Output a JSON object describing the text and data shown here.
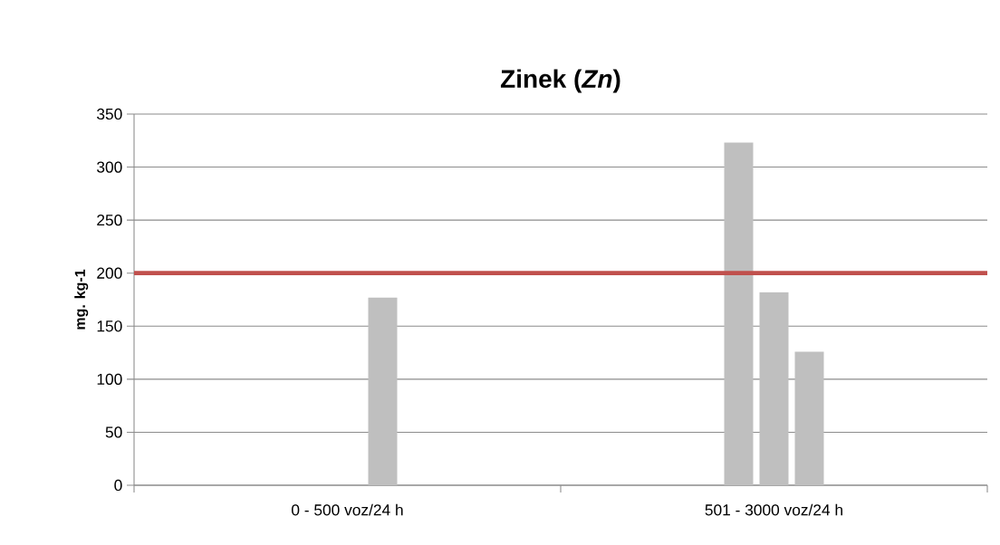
{
  "chart_data": {
    "type": "bar",
    "title": "Zinek (*Zn*)",
    "ylabel": "mg. kg-1",
    "categories": [
      "0 - 500 voz/24 h",
      "501 - 3000 voz/24 h"
    ],
    "series": [
      {
        "color": "#bfbfbf",
        "values": [
          null,
          323
        ]
      },
      {
        "color": "#bfbfbf",
        "values": [
          null,
          182
        ]
      },
      {
        "color": "#bfbfbf",
        "values": [
          177,
          126
        ]
      }
    ],
    "ylim": [
      0,
      350
    ],
    "yticks": [
      0,
      50,
      100,
      150,
      200,
      250,
      300,
      350
    ],
    "grid": "y",
    "ref_lines": [
      {
        "axis": "y",
        "value": 200,
        "color": "#c0504d",
        "line_style": "solid"
      }
    ]
  }
}
